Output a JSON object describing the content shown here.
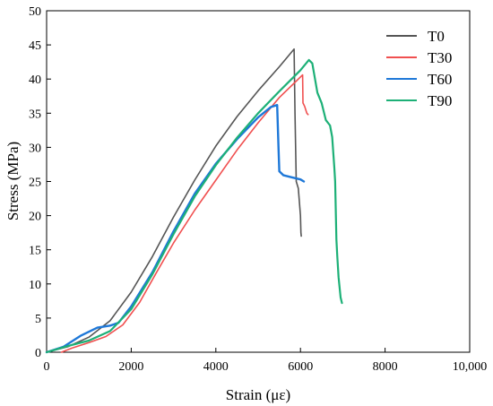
{
  "chart_data": {
    "type": "line",
    "title": "",
    "xlabel": "Strain (με)",
    "ylabel": "Stress (MPa)",
    "xlim": [
      0,
      10000
    ],
    "ylim": [
      0,
      50
    ],
    "x_ticks": [
      0,
      2000,
      4000,
      6000,
      8000,
      10000
    ],
    "x_tick_labels": [
      "0",
      "2000",
      "4000",
      "6000",
      "8000",
      "10,000"
    ],
    "y_ticks": [
      0,
      5,
      10,
      15,
      20,
      25,
      30,
      35,
      40,
      45,
      50
    ],
    "y_tick_labels": [
      "0",
      "5",
      "10",
      "15",
      "20",
      "25",
      "30",
      "35",
      "40",
      "45",
      "50"
    ],
    "grid": false,
    "legend_position": "top-right",
    "series": [
      {
        "name": "T0",
        "color": "#555555",
        "x": [
          0,
          500,
          1000,
          1500,
          2000,
          2500,
          3000,
          3500,
          4000,
          4500,
          5000,
          5500,
          5850,
          5870,
          5900,
          5950,
          6000,
          6010,
          6020
        ],
        "y": [
          0,
          0.8,
          2.2,
          4.6,
          8.8,
          14.0,
          19.8,
          25.2,
          30.2,
          34.5,
          38.3,
          41.8,
          44.4,
          35.0,
          25.0,
          24.0,
          20.0,
          17.5,
          17.0
        ]
      },
      {
        "name": "T30",
        "color": "#f05050",
        "x": [
          350,
          600,
          1000,
          1400,
          1800,
          2200,
          2600,
          3000,
          3500,
          4000,
          4500,
          5000,
          5500,
          5900,
          6050,
          6060,
          6100,
          6150,
          6180
        ],
        "y": [
          0,
          0.6,
          1.4,
          2.3,
          4.0,
          7.3,
          11.7,
          16.0,
          20.8,
          25.2,
          29.6,
          33.6,
          37.3,
          39.7,
          40.6,
          36.5,
          36.0,
          35.0,
          34.8
        ]
      },
      {
        "name": "T60",
        "color": "#1e78d8",
        "x": [
          0,
          400,
          800,
          1200,
          1500,
          1700,
          2000,
          2500,
          3000,
          3500,
          4000,
          4500,
          5000,
          5300,
          5450,
          5480,
          5500,
          5600,
          5800,
          6000,
          6080
        ],
        "y": [
          0,
          0.8,
          2.4,
          3.6,
          3.9,
          4.3,
          6.7,
          11.7,
          17.7,
          23.2,
          27.6,
          31.2,
          34.4,
          35.9,
          36.2,
          30.0,
          26.5,
          25.9,
          25.6,
          25.3,
          25.0
        ]
      },
      {
        "name": "T90",
        "color": "#1db077",
        "x": [
          0,
          500,
          1000,
          1500,
          2000,
          2500,
          3000,
          3500,
          4000,
          4500,
          5000,
          5500,
          6000,
          6200,
          6280,
          6400,
          6500,
          6600,
          6700,
          6750,
          6800,
          6820,
          6850,
          6870,
          6900,
          6950,
          6980
        ],
        "y": [
          0,
          0.9,
          1.7,
          3.1,
          6.3,
          11.4,
          17.3,
          22.8,
          27.4,
          31.4,
          35.0,
          38.2,
          41.3,
          42.8,
          42.3,
          38.0,
          36.5,
          34.0,
          33.2,
          31.5,
          27.0,
          25.0,
          16.5,
          14.0,
          11.0,
          8.0,
          7.2
        ]
      }
    ]
  }
}
